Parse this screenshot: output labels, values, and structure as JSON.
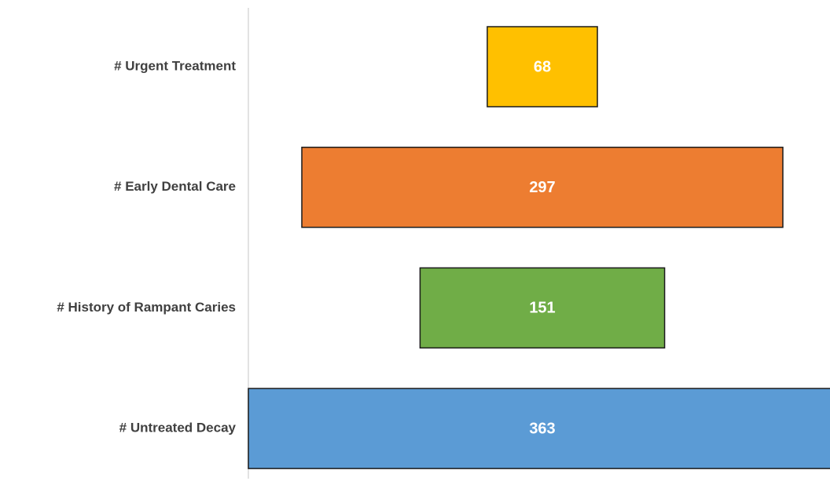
{
  "chart_data": {
    "type": "funnel",
    "categories": [
      "# Urgent Treatment",
      "# Early Dental Care",
      "# History of Rampant Caries",
      "# Untreated Decay"
    ],
    "values": [
      68,
      297,
      151,
      363
    ],
    "colors": [
      "#ffc000",
      "#ed7d31",
      "#70ad47",
      "#5b9bd5"
    ]
  }
}
